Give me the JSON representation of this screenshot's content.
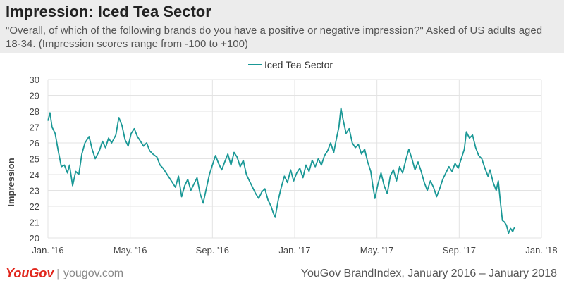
{
  "header": {
    "title": "Impression: Iced Tea Sector",
    "subtitle": "\"Overall, of which of the following brands do you have a positive or negative impression?\" Asked of US adults aged 18-34. (Impression scores range from -100 to +100)"
  },
  "footer": {
    "logo": "YouGov",
    "separator": "|",
    "site": "yougov.com",
    "source": "YouGov BrandIndex, January 2016 – January 2018"
  },
  "colors": {
    "series": "#1a9896",
    "grid": "#e3e3e3",
    "axis_text": "#444444"
  },
  "chart_data": {
    "type": "line",
    "xlabel": "",
    "ylabel": "Impression",
    "ylim": [
      20,
      30
    ],
    "yticks": [
      20,
      21,
      22,
      23,
      24,
      25,
      26,
      27,
      28,
      29,
      30
    ],
    "grid": true,
    "legend": "top-center",
    "xticks": [
      "Jan. '16",
      "May. '16",
      "Sep. '16",
      "Jan. '17",
      "May. '17",
      "Sep. '17",
      "Jan. '18"
    ],
    "x_range_months": [
      0,
      24
    ],
    "series": [
      {
        "name": "Iced Tea Sector",
        "points": [
          [
            0.0,
            27.4
          ],
          [
            0.1,
            27.9
          ],
          [
            0.2,
            27.0
          ],
          [
            0.35,
            26.6
          ],
          [
            0.5,
            25.5
          ],
          [
            0.65,
            24.5
          ],
          [
            0.8,
            24.6
          ],
          [
            0.95,
            24.1
          ],
          [
            1.05,
            24.6
          ],
          [
            1.2,
            23.3
          ],
          [
            1.35,
            24.2
          ],
          [
            1.5,
            24.0
          ],
          [
            1.65,
            25.3
          ],
          [
            1.8,
            26.0
          ],
          [
            2.0,
            26.4
          ],
          [
            2.15,
            25.6
          ],
          [
            2.3,
            25.0
          ],
          [
            2.5,
            25.5
          ],
          [
            2.65,
            26.1
          ],
          [
            2.8,
            25.7
          ],
          [
            2.95,
            26.3
          ],
          [
            3.1,
            26.0
          ],
          [
            3.3,
            26.5
          ],
          [
            3.45,
            27.6
          ],
          [
            3.6,
            27.1
          ],
          [
            3.75,
            26.2
          ],
          [
            3.9,
            25.8
          ],
          [
            4.05,
            26.6
          ],
          [
            4.2,
            26.9
          ],
          [
            4.35,
            26.4
          ],
          [
            4.5,
            26.1
          ],
          [
            4.65,
            25.8
          ],
          [
            4.8,
            26.0
          ],
          [
            4.95,
            25.5
          ],
          [
            5.1,
            25.3
          ],
          [
            5.3,
            25.1
          ],
          [
            5.45,
            24.6
          ],
          [
            5.6,
            24.4
          ],
          [
            5.75,
            24.1
          ],
          [
            5.9,
            23.8
          ],
          [
            6.05,
            23.5
          ],
          [
            6.2,
            23.2
          ],
          [
            6.35,
            23.9
          ],
          [
            6.5,
            22.6
          ],
          [
            6.65,
            23.3
          ],
          [
            6.8,
            23.7
          ],
          [
            6.95,
            23.0
          ],
          [
            7.1,
            23.4
          ],
          [
            7.25,
            23.8
          ],
          [
            7.4,
            22.8
          ],
          [
            7.55,
            22.2
          ],
          [
            7.7,
            23.1
          ],
          [
            7.85,
            24.0
          ],
          [
            8.0,
            24.6
          ],
          [
            8.15,
            25.2
          ],
          [
            8.3,
            24.7
          ],
          [
            8.45,
            24.3
          ],
          [
            8.6,
            24.8
          ],
          [
            8.75,
            25.3
          ],
          [
            8.9,
            24.6
          ],
          [
            9.05,
            25.4
          ],
          [
            9.2,
            25.1
          ],
          [
            9.35,
            24.5
          ],
          [
            9.5,
            24.9
          ],
          [
            9.65,
            24.0
          ],
          [
            9.8,
            23.6
          ],
          [
            9.95,
            23.2
          ],
          [
            10.1,
            22.8
          ],
          [
            10.25,
            22.5
          ],
          [
            10.4,
            22.9
          ],
          [
            10.55,
            23.1
          ],
          [
            10.7,
            22.4
          ],
          [
            10.85,
            22.0
          ],
          [
            10.95,
            21.6
          ],
          [
            11.05,
            21.3
          ],
          [
            11.2,
            22.4
          ],
          [
            11.35,
            23.2
          ],
          [
            11.5,
            23.9
          ],
          [
            11.65,
            23.5
          ],
          [
            11.8,
            24.3
          ],
          [
            11.95,
            23.6
          ],
          [
            12.1,
            24.1
          ],
          [
            12.25,
            24.4
          ],
          [
            12.4,
            23.8
          ],
          [
            12.55,
            24.6
          ],
          [
            12.7,
            24.2
          ],
          [
            12.85,
            24.9
          ],
          [
            13.0,
            24.5
          ],
          [
            13.15,
            25.0
          ],
          [
            13.3,
            24.6
          ],
          [
            13.45,
            25.2
          ],
          [
            13.6,
            25.5
          ],
          [
            13.75,
            26.0
          ],
          [
            13.9,
            25.4
          ],
          [
            14.05,
            26.4
          ],
          [
            14.15,
            27.0
          ],
          [
            14.25,
            28.2
          ],
          [
            14.35,
            27.5
          ],
          [
            14.5,
            26.6
          ],
          [
            14.65,
            26.9
          ],
          [
            14.8,
            26.0
          ],
          [
            14.95,
            25.7
          ],
          [
            15.1,
            25.9
          ],
          [
            15.25,
            25.3
          ],
          [
            15.4,
            25.6
          ],
          [
            15.55,
            24.8
          ],
          [
            15.7,
            24.2
          ],
          [
            15.8,
            23.3
          ],
          [
            15.9,
            22.5
          ],
          [
            16.05,
            23.4
          ],
          [
            16.2,
            24.1
          ],
          [
            16.35,
            23.3
          ],
          [
            16.5,
            22.8
          ],
          [
            16.65,
            23.9
          ],
          [
            16.8,
            24.3
          ],
          [
            16.95,
            23.6
          ],
          [
            17.1,
            24.5
          ],
          [
            17.25,
            24.1
          ],
          [
            17.4,
            24.9
          ],
          [
            17.55,
            25.6
          ],
          [
            17.7,
            25.0
          ],
          [
            17.85,
            24.3
          ],
          [
            18.0,
            24.8
          ],
          [
            18.15,
            24.2
          ],
          [
            18.3,
            23.5
          ],
          [
            18.45,
            23.0
          ],
          [
            18.6,
            23.6
          ],
          [
            18.75,
            23.2
          ],
          [
            18.9,
            22.6
          ],
          [
            19.05,
            23.1
          ],
          [
            19.2,
            23.7
          ],
          [
            19.35,
            24.1
          ],
          [
            19.5,
            24.5
          ],
          [
            19.65,
            24.2
          ],
          [
            19.8,
            24.7
          ],
          [
            19.95,
            24.4
          ],
          [
            20.1,
            25.0
          ],
          [
            20.25,
            25.6
          ],
          [
            20.35,
            26.7
          ],
          [
            20.5,
            26.3
          ],
          [
            20.65,
            26.5
          ],
          [
            20.8,
            25.7
          ],
          [
            20.95,
            25.2
          ],
          [
            21.1,
            25.0
          ],
          [
            21.25,
            24.4
          ],
          [
            21.4,
            23.9
          ],
          [
            21.5,
            24.3
          ],
          [
            21.65,
            23.5
          ],
          [
            21.8,
            23.0
          ],
          [
            21.9,
            23.6
          ],
          [
            22.0,
            22.3
          ],
          [
            22.1,
            21.1
          ],
          [
            22.2,
            21.0
          ],
          [
            22.3,
            20.8
          ],
          [
            22.4,
            20.3
          ],
          [
            22.5,
            20.6
          ],
          [
            22.6,
            20.4
          ],
          [
            22.7,
            20.7
          ]
        ]
      }
    ]
  }
}
